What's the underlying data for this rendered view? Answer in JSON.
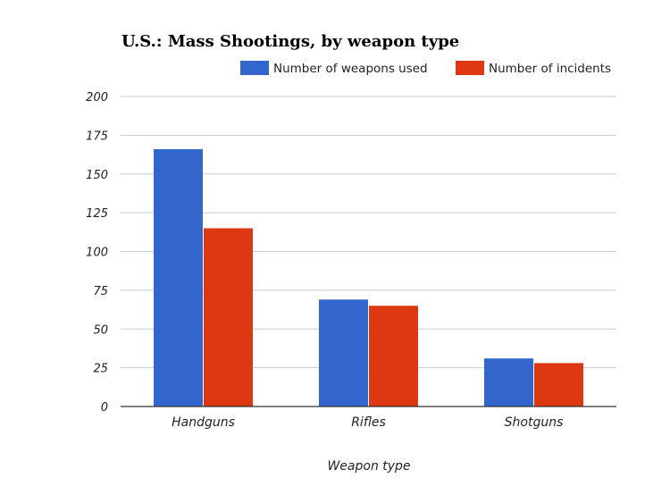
{
  "chart_data": {
    "type": "bar",
    "title": "U.S.: Mass Shootings, by weapon type",
    "xlabel": "Weapon type",
    "ylabel": "",
    "categories": [
      "Handguns",
      "Rifles",
      "Shotguns"
    ],
    "series": [
      {
        "name": "Number of weapons used",
        "values": [
          166,
          69,
          31
        ],
        "color": "#3366cc"
      },
      {
        "name": "Number of incidents",
        "values": [
          115,
          65,
          28
        ],
        "color": "#dc3912"
      }
    ],
    "ylim": [
      0,
      200
    ],
    "yticks": [
      0,
      25,
      50,
      75,
      100,
      125,
      150,
      175,
      200
    ],
    "grid": true,
    "legend_position": "top-right"
  }
}
